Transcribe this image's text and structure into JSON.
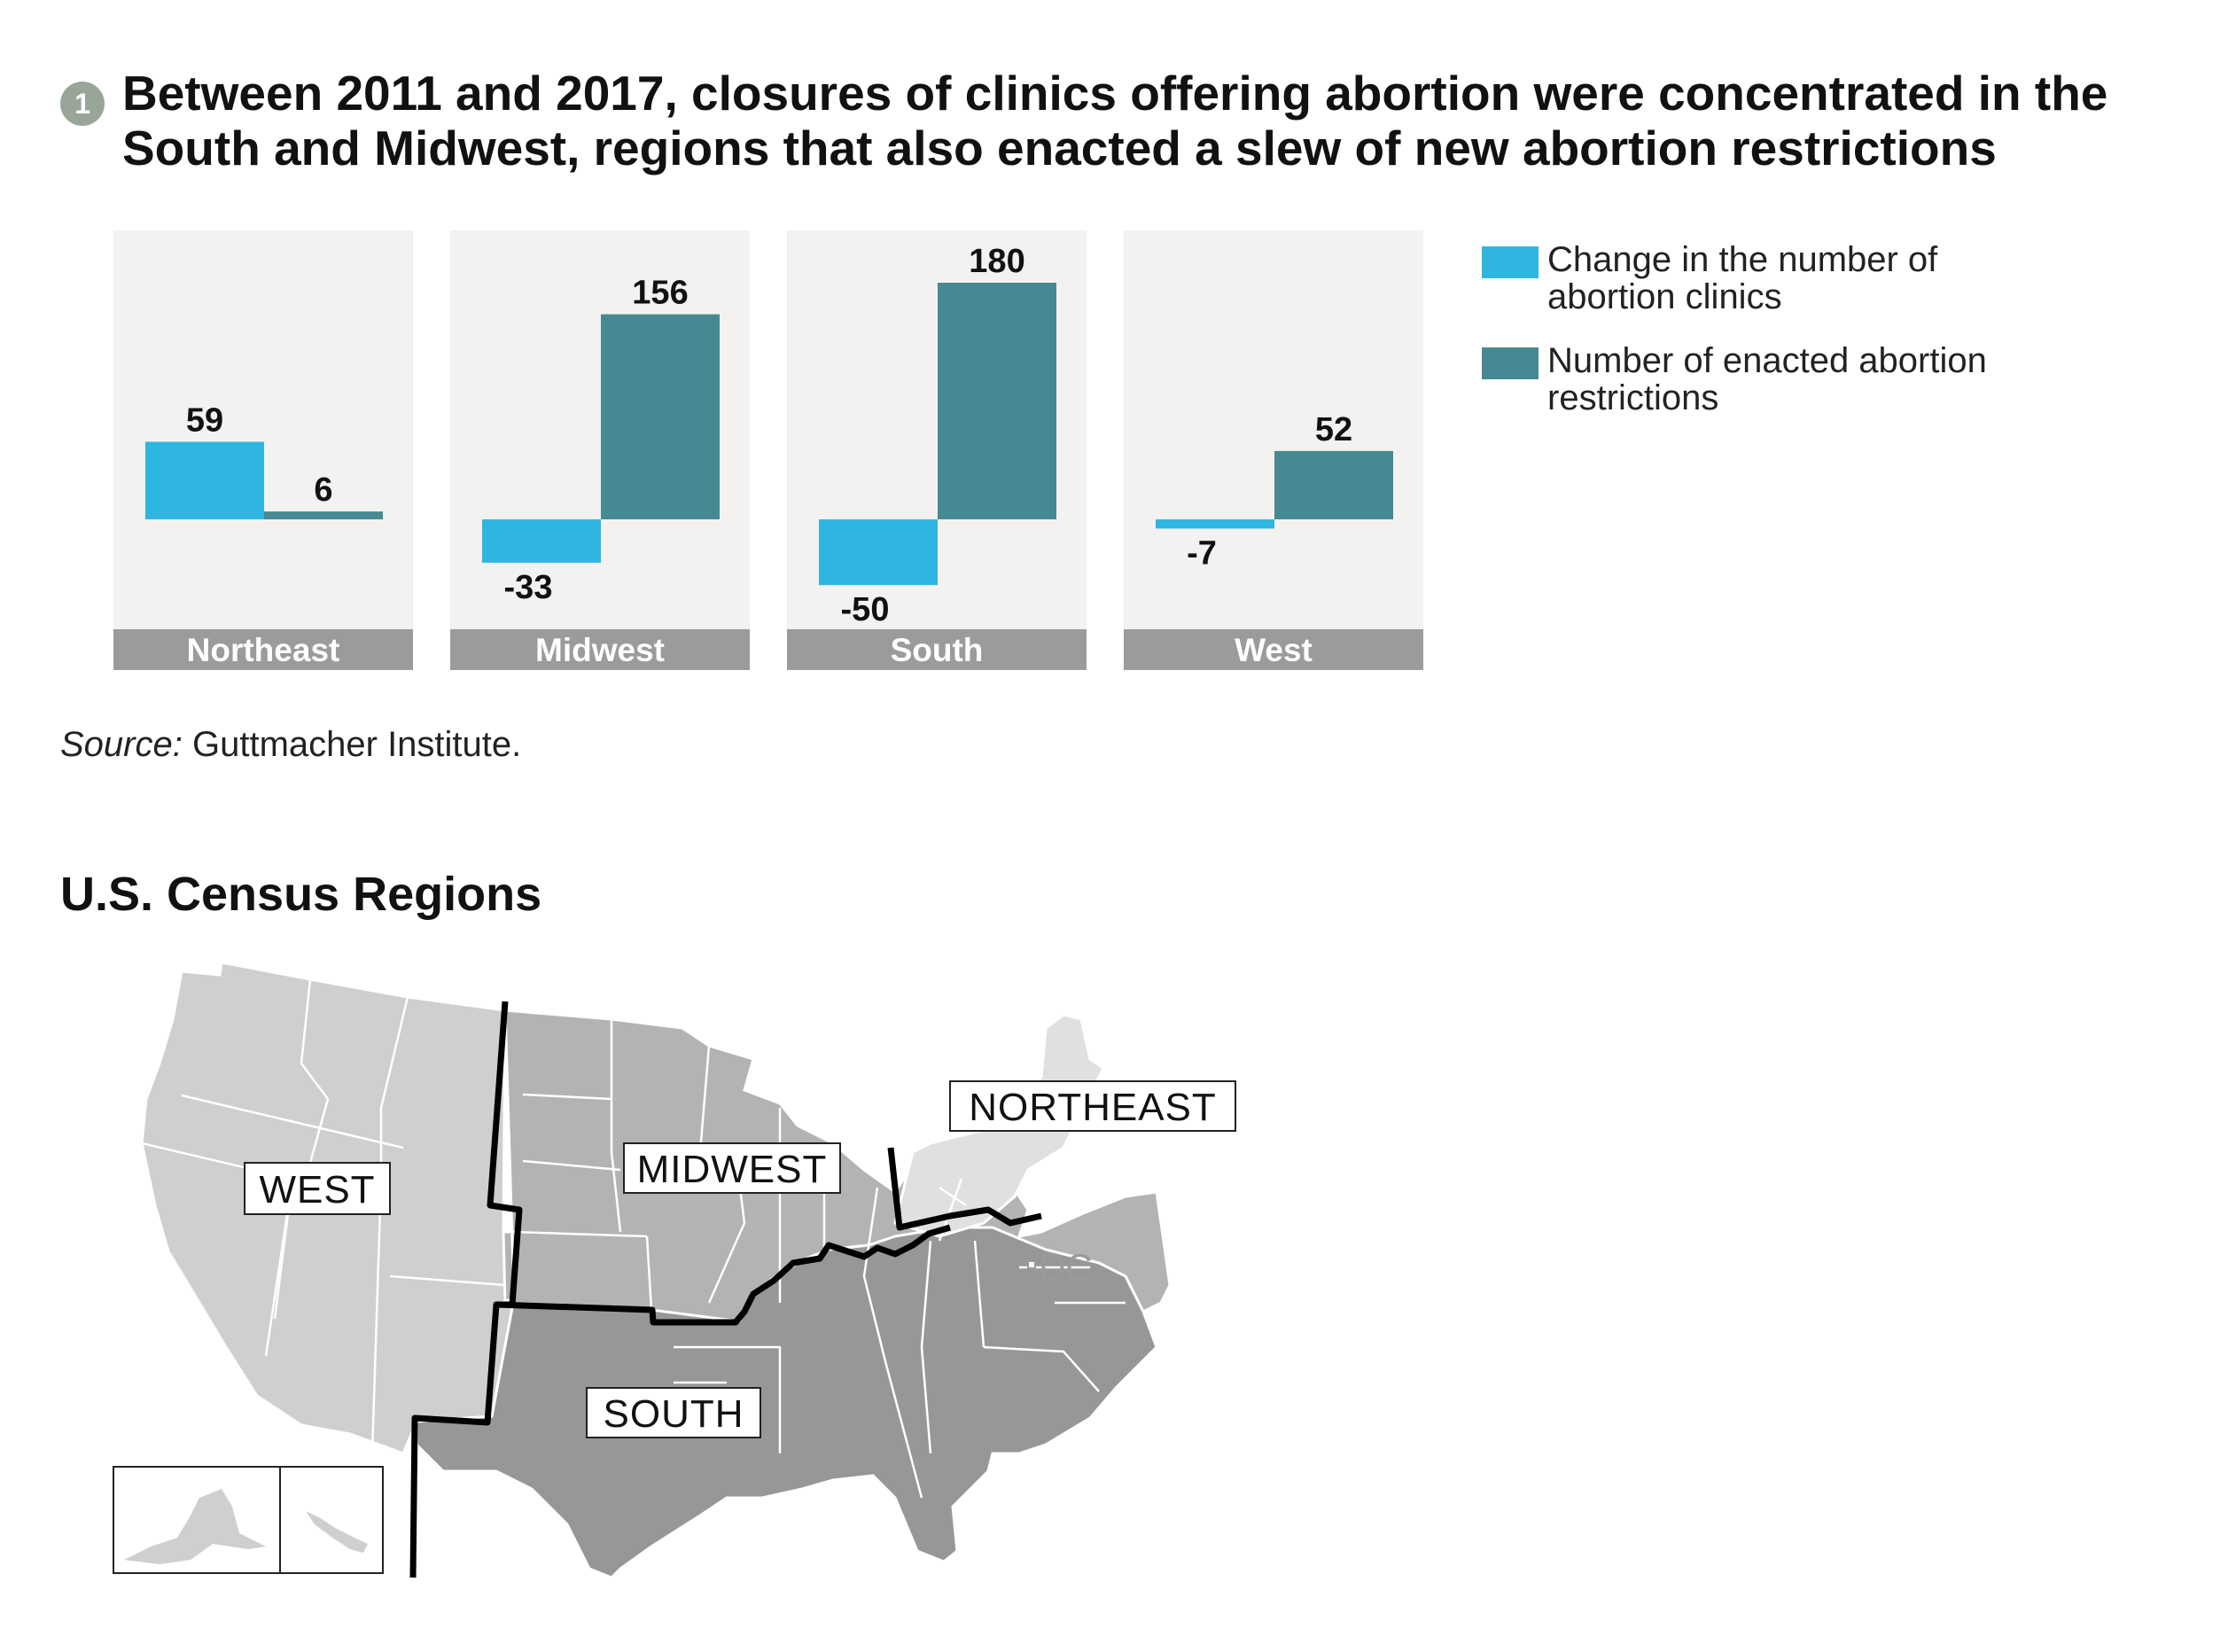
{
  "header": {
    "number": "1",
    "title": "Between 2011 and 2017, closures of clinics offering abortion were concentrated in the South and Midwest, regions that also enacted a slew of new abortion restrictions"
  },
  "legend": {
    "clinics": "Change in the number of abortion clinics",
    "restrictions": "Number of enacted abortion restrictions"
  },
  "source": {
    "label": "Source:",
    "text": "Guttmacher Institute."
  },
  "colors": {
    "clinics": "#2eb6e0",
    "restrictions": "#478992",
    "panel_bg": "#f3f2f1",
    "region_bar": "#9b9b9b",
    "west_map": "#cfcfcf",
    "midwest_map": "#b3b3b3",
    "south_map": "#979797",
    "northeast_map": "#e0e0e0"
  },
  "chart_data": {
    "type": "bar",
    "categories": [
      "Northeast",
      "Midwest",
      "South",
      "West"
    ],
    "series": [
      {
        "name": "Change in the number of abortion clinics",
        "values": [
          59,
          -33,
          -50,
          -7
        ]
      },
      {
        "name": "Number of enacted abortion restrictions",
        "values": [
          6,
          156,
          180,
          52
        ]
      }
    ],
    "grid": false,
    "legend_position": "right"
  },
  "map": {
    "title": "U.S. Census Regions",
    "labels": {
      "west": "WEST",
      "midwest": "MIDWEST",
      "south": "SOUTH",
      "northeast": "NORTHEAST",
      "dc": "DC"
    }
  }
}
